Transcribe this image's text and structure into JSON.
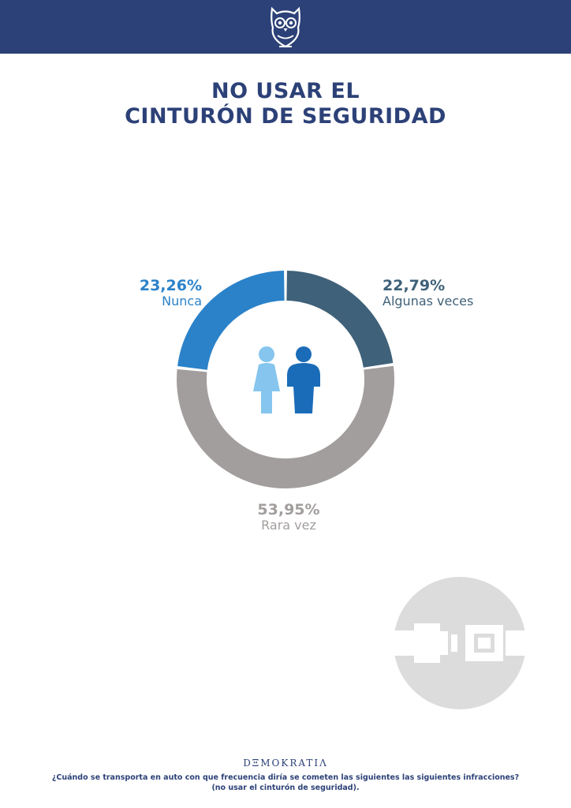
{
  "header": {
    "logo_icon": "owl-icon",
    "background_color": "#2c4177"
  },
  "title": {
    "line1": "NO USAR EL",
    "line2": "CINTURÓN DE SEGURIDAD"
  },
  "chart_data": {
    "type": "pie",
    "style": "donut",
    "title": "NO USAR EL CINTURÓN DE SEGURIDAD",
    "slices": [
      {
        "label": "Algunas veces",
        "value": 22.79,
        "value_label": "22,79%",
        "color": "#3f6179",
        "label_color": "#3f6179"
      },
      {
        "label": "Rara vez",
        "value": 53.95,
        "value_label": "53,95%",
        "color": "#a29e9d",
        "label_color": "#a29e9d"
      },
      {
        "label": "Nunca",
        "value": 23.26,
        "value_label": "23,26%",
        "color": "#2b82c9",
        "label_color": "#2b82c9"
      }
    ],
    "center_icons": [
      "woman-icon",
      "man-icon"
    ]
  },
  "decoration": {
    "badge_icon": "seatbelt-buckle-icon",
    "badge_color": "#dcdcdc"
  },
  "footer": {
    "brand": "DΞMOKRATIΛ",
    "question_line1": "¿Cuándo se transporta en auto con que frecuencia diría se cometen las siguientes las siguientes infracciones?",
    "question_line2": "(no usar el cinturón de seguridad)."
  }
}
